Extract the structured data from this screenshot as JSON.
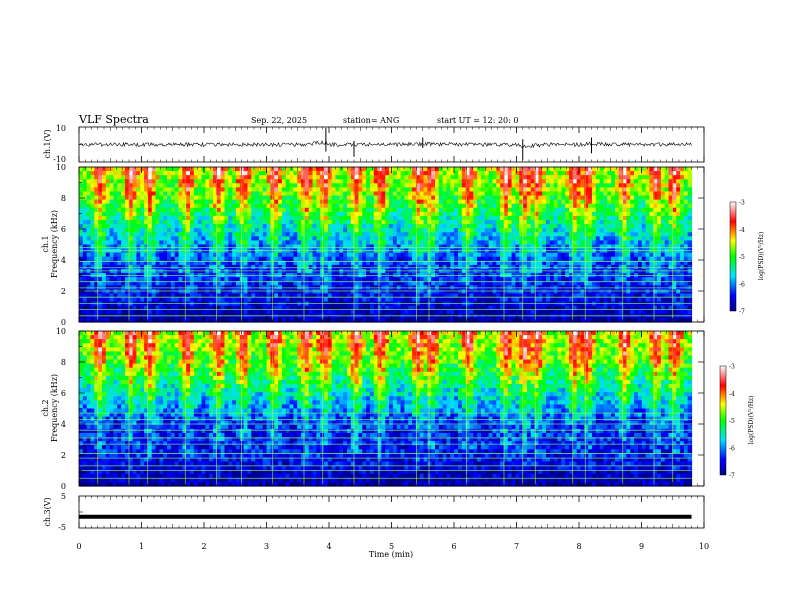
{
  "header": {
    "title": "VLF Spectra",
    "date": "Sep. 22, 2025",
    "station": "station= ANG",
    "start": "start  UT =   12: 20: 0"
  },
  "colors": {
    "background": "#ffffff",
    "ink": "#000000",
    "low": "#00008b",
    "high": "#8b0000"
  },
  "chart_data": [
    {
      "id": "ch1-voltage",
      "type": "line",
      "ylabel": "ch.1(V)",
      "ylim": [
        -10,
        10
      ],
      "yticks": [
        {
          "v": 10,
          "label": "10"
        },
        {
          "v": -10,
          "label": "-10"
        }
      ],
      "x": [
        0,
        0.5,
        1,
        1.5,
        2,
        2.5,
        3,
        3.5,
        3.95,
        4,
        4.5,
        5,
        5.5,
        6,
        6.5,
        7,
        7.1,
        7.5,
        8,
        8.2,
        8.5,
        9,
        9.5,
        9.8
      ],
      "values": [
        0,
        0.5,
        -0.5,
        0.3,
        -0.3,
        0.4,
        0,
        -0.4,
        8,
        -0.5,
        0.6,
        -0.2,
        2.5,
        0.3,
        -0.4,
        -1,
        -8,
        0.5,
        -0.6,
        3,
        0.2,
        -0.3,
        0.4,
        0
      ],
      "spikes": [
        {
          "x": 3.95,
          "low": -4,
          "high": 9.5
        },
        {
          "x": 4.4,
          "low": -7,
          "high": 2
        },
        {
          "x": 5.5,
          "low": -2,
          "high": 4
        },
        {
          "x": 7.1,
          "low": -9,
          "high": 3
        },
        {
          "x": 8.2,
          "low": -5,
          "high": 4
        }
      ]
    },
    {
      "id": "ch1-spectrogram",
      "type": "heatmap",
      "title": "ch.1",
      "ylabel": "Frequency (kHz)",
      "ylim": [
        0,
        10
      ],
      "yticks": [
        "0",
        "2",
        "4",
        "6",
        "8",
        "10"
      ],
      "zlabel": "log(PSD)(V²/Hz)",
      "zlim": [
        -7,
        -3
      ],
      "zticks": [
        "-3",
        "-4",
        "-5",
        "-6",
        "-7"
      ],
      "lines_khz": [
        0.4,
        0.8,
        1.2,
        1.6,
        2.0,
        2.2,
        2.6,
        3.0,
        3.3,
        3.5,
        3.9,
        4.6,
        4.8
      ],
      "impulses_min": [
        0.3,
        0.8,
        1.1,
        1.7,
        2.2,
        2.6,
        3.1,
        3.6,
        3.9,
        4.4,
        4.8,
        5.4,
        5.6,
        6.2,
        6.8,
        7.1,
        7.3,
        7.9,
        8.1,
        8.7,
        9.2,
        9.5
      ],
      "level_by_freq": [
        {
          "khz": 0,
          "log_psd": -6.9
        },
        {
          "khz": 2,
          "log_psd": -6.5
        },
        {
          "khz": 4,
          "log_psd": -6.3
        },
        {
          "khz": 6,
          "log_psd": -5.7
        },
        {
          "khz": 8,
          "log_psd": -5.0
        },
        {
          "khz": 10,
          "log_psd": -4.6
        }
      ]
    },
    {
      "id": "ch2-spectrogram",
      "type": "heatmap",
      "title": "ch.2",
      "ylabel": "Frequency (kHz)",
      "ylim": [
        0,
        10
      ],
      "yticks": [
        "0",
        "2",
        "4",
        "6",
        "8",
        "10"
      ],
      "zlabel": "log(PSD)(V²/Hz)",
      "zlim": [
        -7,
        -3
      ],
      "zticks": [
        "-3",
        "-4",
        "-5",
        "-6",
        "-7"
      ],
      "lines_khz": [
        0.5,
        1.0,
        1.3,
        1.8,
        2.1,
        2.7,
        3.1,
        3.6,
        4.0,
        4.3,
        4.7
      ],
      "impulses_min": [
        0.3,
        0.8,
        1.1,
        1.7,
        2.2,
        2.6,
        3.1,
        3.6,
        3.9,
        4.4,
        4.8,
        5.4,
        5.6,
        6.2,
        6.8,
        7.1,
        7.3,
        7.9,
        8.1,
        8.7,
        9.2,
        9.5
      ],
      "level_by_freq": [
        {
          "khz": 0,
          "log_psd": -6.9
        },
        {
          "khz": 2,
          "log_psd": -6.5
        },
        {
          "khz": 4,
          "log_psd": -6.4
        },
        {
          "khz": 6,
          "log_psd": -5.7
        },
        {
          "khz": 8,
          "log_psd": -5.0
        },
        {
          "khz": 10,
          "log_psd": -4.6
        }
      ]
    },
    {
      "id": "ch3-voltage",
      "type": "line",
      "ylabel": "ch.3(V)",
      "ylim": [
        -5,
        5
      ],
      "yticks": [
        {
          "v": 5,
          "label": "5"
        },
        {
          "v": -5,
          "label": "-5"
        }
      ],
      "x": [
        0,
        9.8
      ],
      "values": [
        -1.5,
        -1.5
      ]
    }
  ],
  "xaxis": {
    "label": "Time  (min)",
    "xlim": [
      0,
      10
    ],
    "ticks": [
      "0",
      "1",
      "2",
      "3",
      "4",
      "5",
      "6",
      "7",
      "8",
      "9",
      "10"
    ],
    "data_end": 9.8
  }
}
